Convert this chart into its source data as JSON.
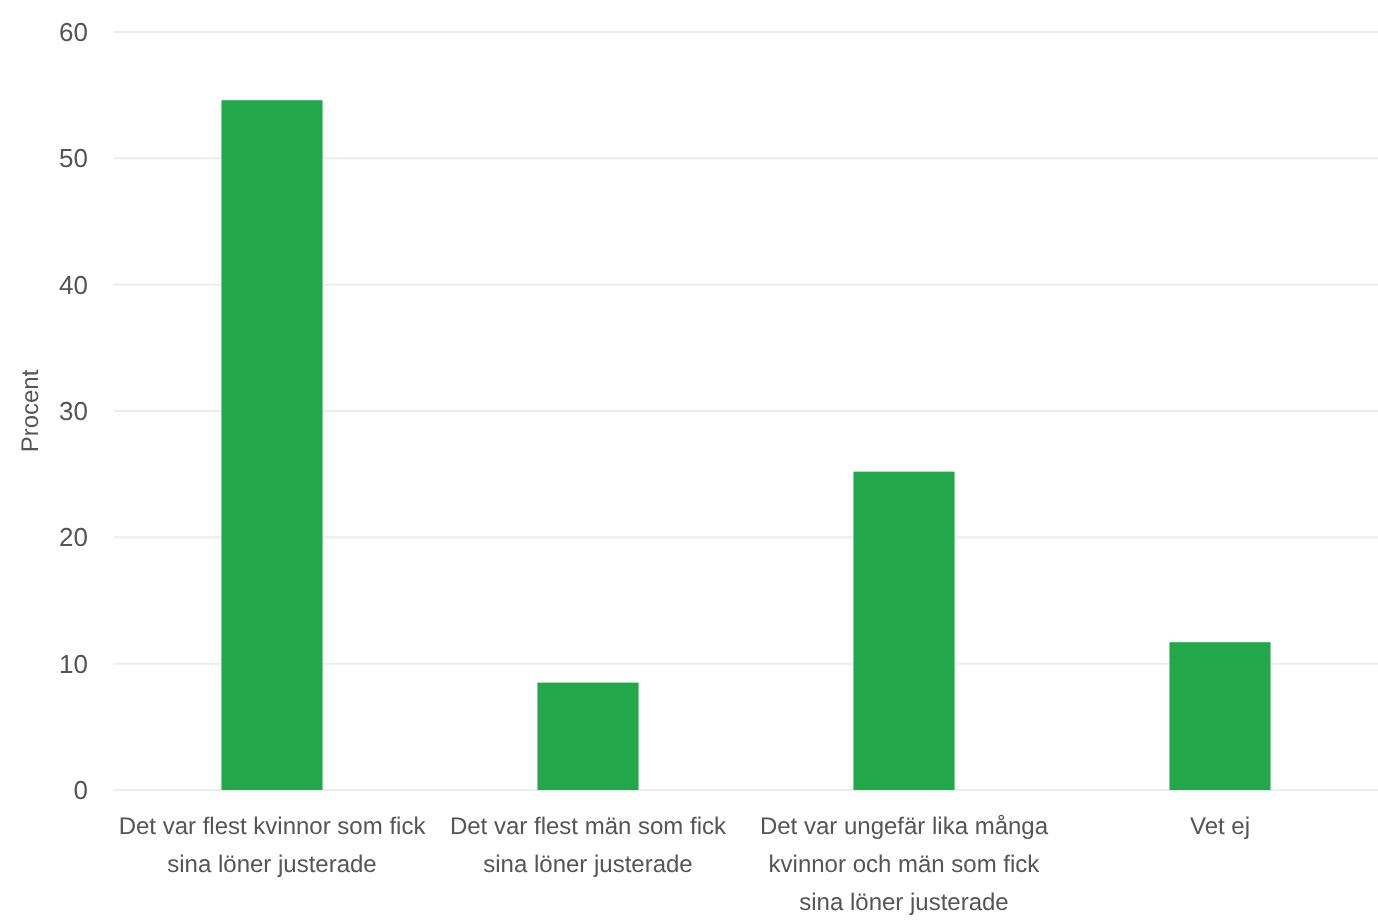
{
  "chart_data": {
    "type": "bar",
    "ylabel": "Procent",
    "categories": [
      "Det var flest kvinnor som fick sina löner justerade",
      "Det var flest män som fick sina löner justerade",
      "Det var ungefär lika många kvinnor och män som fick sina löner justerade",
      "Vet ej"
    ],
    "values": [
      54.6,
      8.5,
      25.2,
      11.7
    ],
    "color": "#22a84a",
    "ylim": [
      0,
      60
    ],
    "yticks": [
      0,
      10,
      20,
      30,
      40,
      50,
      60
    ],
    "grid": "y"
  }
}
